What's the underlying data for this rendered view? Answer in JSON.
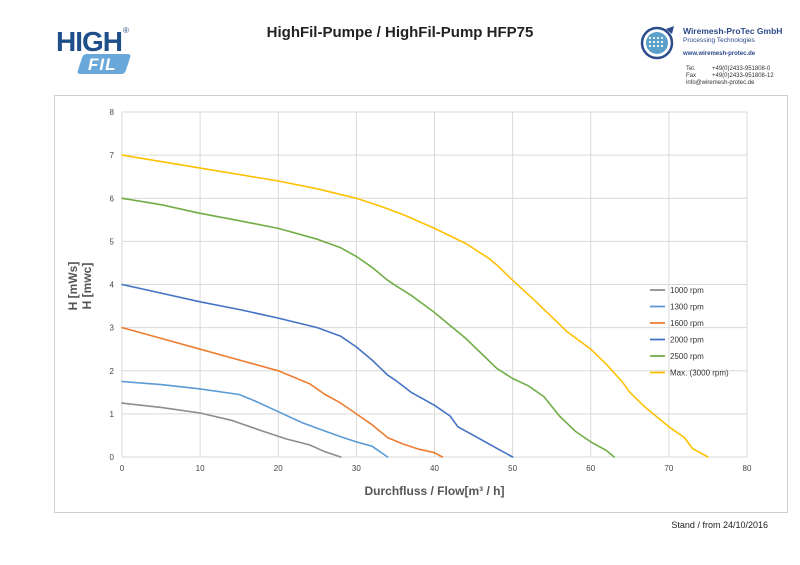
{
  "header": {
    "logo_high": "HIGH",
    "logo_fil": "FIL",
    "logo_reg": "®",
    "title": "HighFil-Pumpe / HighFil-Pump HFP75"
  },
  "company": {
    "name": "Wiremesh-ProTec GmbH",
    "subtitle": "Processing Technologies",
    "website": "www.wiremesh-protec.de",
    "tel_label": "Tel.",
    "tel": "+49(0)2433-951808-0",
    "fax_label": "Fax",
    "fax": "+49(0)2433-951808-12",
    "email": "info@wiremesh-protec.de"
  },
  "footer": {
    "date_note": "Stand / from 24/10/2016"
  },
  "colors": {
    "gridline": "#d9d9d9",
    "axis_text": "#444444"
  },
  "chart_data": {
    "type": "line",
    "title": "HighFil-Pumpe / HighFil-Pump HFP75",
    "xlabel": "Durchfluss / Flow[m³ / h]",
    "ylabel_line1": "H [mWs]",
    "ylabel_line2": "H [mwc]",
    "xlim": [
      0,
      80
    ],
    "ylim": [
      0,
      8
    ],
    "xticks": [
      0,
      10,
      20,
      30,
      40,
      50,
      60,
      70,
      80
    ],
    "yticks": [
      0,
      1,
      2,
      3,
      4,
      5,
      6,
      7,
      8
    ],
    "grid": true,
    "legend_position": "right",
    "series": [
      {
        "name": "1000 rpm",
        "color": "#8c8c8c",
        "x": [
          0,
          5,
          10,
          14,
          18,
          21,
          24,
          26,
          28
        ],
        "y": [
          1.25,
          1.15,
          1.02,
          0.85,
          0.6,
          0.42,
          0.28,
          0.12,
          0
        ]
      },
      {
        "name": "1300 rpm",
        "color": "#5b9bd5",
        "x": [
          0,
          5,
          10,
          15,
          17,
          20,
          23,
          26,
          28,
          30,
          32,
          34
        ],
        "y": [
          1.75,
          1.68,
          1.58,
          1.45,
          1.3,
          1.05,
          0.8,
          0.6,
          0.47,
          0.35,
          0.25,
          0
        ]
      },
      {
        "name": "1600 rpm",
        "color": "#ed7d31",
        "x": [
          0,
          5,
          10,
          15,
          20,
          24,
          26,
          28,
          30,
          32,
          34,
          36,
          38,
          40,
          41
        ],
        "y": [
          3.0,
          2.75,
          2.5,
          2.25,
          2.0,
          1.7,
          1.45,
          1.25,
          1.0,
          0.75,
          0.45,
          0.3,
          0.18,
          0.1,
          0
        ]
      },
      {
        "name": "2000 rpm",
        "color": "#4472c4",
        "x": [
          0,
          5,
          10,
          15,
          20,
          25,
          28,
          30,
          32,
          34,
          35,
          37,
          40,
          42,
          43,
          45,
          48,
          50
        ],
        "y": [
          4.0,
          3.8,
          3.6,
          3.42,
          3.22,
          3.0,
          2.8,
          2.55,
          2.25,
          1.9,
          1.78,
          1.5,
          1.2,
          0.95,
          0.7,
          0.5,
          0.2,
          0
        ]
      },
      {
        "name": "2500 rpm",
        "color": "#70ad47",
        "x": [
          0,
          5,
          10,
          15,
          20,
          25,
          28,
          30,
          32,
          34,
          35,
          37,
          40,
          42,
          44,
          46,
          48,
          50,
          52,
          54,
          56,
          58,
          60,
          62,
          63
        ],
        "y": [
          6.0,
          5.85,
          5.65,
          5.48,
          5.3,
          5.05,
          4.85,
          4.65,
          4.4,
          4.1,
          3.98,
          3.75,
          3.35,
          3.05,
          2.75,
          2.4,
          2.05,
          1.82,
          1.65,
          1.4,
          0.95,
          0.6,
          0.35,
          0.15,
          0
        ]
      },
      {
        "name": "Max. (3000 rpm)",
        "color": "#ffc000",
        "x": [
          0,
          5,
          10,
          15,
          20,
          25,
          30,
          33,
          36,
          40,
          44,
          47,
          48,
          50,
          53,
          55,
          57,
          60,
          62,
          64,
          65,
          67,
          70,
          72,
          73,
          75
        ],
        "y": [
          7.0,
          6.85,
          6.7,
          6.55,
          6.4,
          6.22,
          6.0,
          5.82,
          5.62,
          5.3,
          4.95,
          4.6,
          4.45,
          4.1,
          3.6,
          3.25,
          2.9,
          2.5,
          2.15,
          1.75,
          1.5,
          1.15,
          0.7,
          0.45,
          0.2,
          0
        ]
      }
    ]
  }
}
